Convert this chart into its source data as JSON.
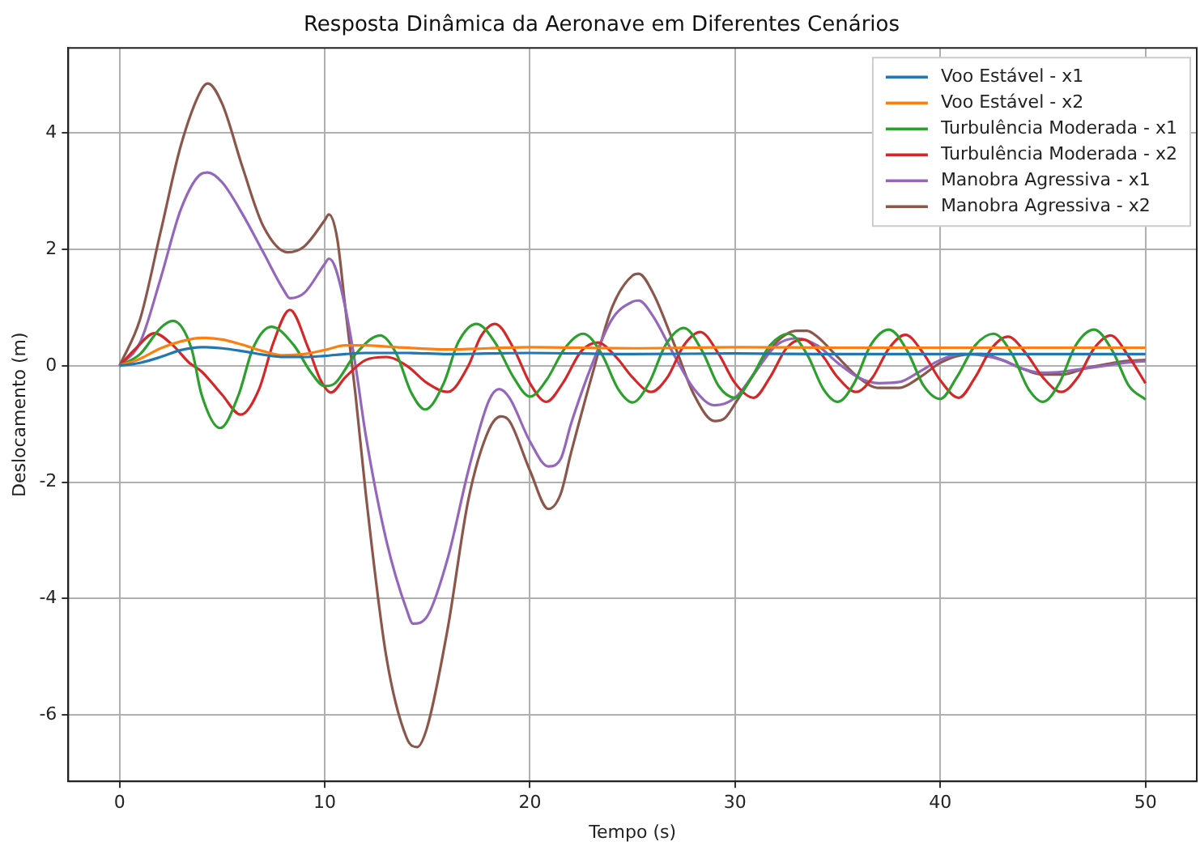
{
  "chart_data": {
    "type": "line",
    "title": "Resposta Dinâmica da Aeronave em Diferentes Cenários",
    "xlabel": "Tempo (s)",
    "ylabel": "Deslocamento (m)",
    "xlim": [
      -2.5,
      52.5
    ],
    "xticks": [
      0,
      10,
      20,
      30,
      40,
      50
    ],
    "ylim": [
      -7.14,
      5.46
    ],
    "yticks": [
      -6,
      -4,
      -2,
      0,
      2,
      4
    ],
    "grid": true,
    "legend": "top right",
    "marker": "none",
    "series": [
      {
        "name": "Voo Estável - x1",
        "color": "#1f77b4",
        "x": [
          0,
          1,
          2,
          3,
          4,
          5,
          6,
          7,
          8,
          9,
          10,
          11,
          12,
          14,
          16,
          18,
          20,
          25,
          30,
          35,
          40,
          45,
          50
        ],
        "values": [
          0,
          0.05,
          0.15,
          0.27,
          0.32,
          0.3,
          0.25,
          0.19,
          0.15,
          0.15,
          0.17,
          0.2,
          0.22,
          0.22,
          0.2,
          0.21,
          0.22,
          0.2,
          0.21,
          0.2,
          0.2,
          0.2,
          0.2
        ]
      },
      {
        "name": "Voo Estável - x2",
        "color": "#ff7f0e",
        "x": [
          0,
          1,
          2,
          3,
          4,
          5,
          6,
          7,
          8,
          9,
          10,
          11,
          12,
          13,
          16,
          18,
          20,
          25,
          30,
          35,
          40,
          45,
          50
        ],
        "values": [
          0,
          0.12,
          0.3,
          0.42,
          0.48,
          0.45,
          0.36,
          0.25,
          0.18,
          0.2,
          0.27,
          0.35,
          0.35,
          0.33,
          0.28,
          0.3,
          0.32,
          0.3,
          0.32,
          0.31,
          0.31,
          0.31,
          0.31
        ]
      },
      {
        "name": "Turbulência Moderada - x1",
        "color": "#2ca02c",
        "x": [
          0,
          1,
          2,
          2.6,
          3.5,
          4,
          4.9,
          5.8,
          6.5,
          7.4,
          8.5,
          9.3,
          10,
          10.5,
          11.5,
          12.7,
          13.5,
          14.2,
          14.9,
          15.8,
          16.5,
          17.4,
          18.3,
          19.2,
          20,
          20.8,
          21.7,
          22.6,
          23.5,
          24.3,
          25,
          25.8,
          26.6,
          27.5,
          28.4,
          29.2,
          30,
          30.8,
          31.7,
          32.6,
          33.5,
          34.3,
          35,
          35.8,
          36.6,
          37.5,
          38.4,
          39.2,
          40,
          40.8,
          41.7,
          42.6,
          43.5,
          44.3,
          45,
          45.8,
          46.6,
          47.5,
          48.4,
          49.2,
          50
        ],
        "values": [
          0,
          0.2,
          0.65,
          0.77,
          0.3,
          -0.5,
          -1.07,
          -0.5,
          0.3,
          0.67,
          0.35,
          -0.1,
          -0.35,
          -0.3,
          0.2,
          0.52,
          0.2,
          -0.45,
          -0.75,
          -0.3,
          0.4,
          0.72,
          0.4,
          -0.2,
          -0.53,
          -0.25,
          0.3,
          0.55,
          0.2,
          -0.4,
          -0.63,
          -0.3,
          0.35,
          0.65,
          0.25,
          -0.35,
          -0.55,
          -0.2,
          0.35,
          0.55,
          0.2,
          -0.4,
          -0.62,
          -0.3,
          0.35,
          0.62,
          0.25,
          -0.35,
          -0.57,
          -0.2,
          0.35,
          0.55,
          0.2,
          -0.4,
          -0.62,
          -0.3,
          0.35,
          0.62,
          0.25,
          -0.35,
          -0.58
        ]
      },
      {
        "name": "Turbulência Moderada - x2",
        "color": "#d62728",
        "x": [
          0,
          0.8,
          1.7,
          2.6,
          3.4,
          4,
          5,
          5.9,
          6.8,
          7.5,
          8.3,
          9.2,
          9.8,
          10.3,
          11,
          12,
          13,
          14,
          15,
          16,
          17,
          17.6,
          18.3,
          19.2,
          20,
          20.8,
          21.6,
          22.5,
          23.3,
          24.2,
          25,
          25.9,
          26.7,
          27.5,
          28.3,
          29.2,
          30,
          30.9,
          31.7,
          32.5,
          33.3,
          34.2,
          35,
          35.9,
          36.7,
          37.5,
          38.3,
          39.2,
          40,
          40.9,
          41.7,
          42.5,
          43.3,
          44.2,
          45,
          45.9,
          46.7,
          47.5,
          48.3,
          49.2,
          50
        ],
        "values": [
          0,
          0.3,
          0.56,
          0.35,
          0.05,
          -0.1,
          -0.5,
          -0.84,
          -0.4,
          0.4,
          0.96,
          0.3,
          -0.25,
          -0.46,
          -0.2,
          0.1,
          0.15,
          0,
          -0.3,
          -0.45,
          0,
          0.5,
          0.72,
          0.3,
          -0.3,
          -0.62,
          -0.3,
          0.25,
          0.4,
          0.15,
          -0.2,
          -0.45,
          -0.2,
          0.35,
          0.58,
          0.2,
          -0.3,
          -0.55,
          -0.2,
          0.3,
          0.45,
          0.2,
          -0.2,
          -0.45,
          -0.2,
          0.3,
          0.53,
          0.2,
          -0.25,
          -0.55,
          -0.2,
          0.3,
          0.5,
          0.2,
          -0.2,
          -0.45,
          -0.2,
          0.3,
          0.52,
          0.15,
          -0.3
        ]
      },
      {
        "name": "Manobra Agressiva - x1",
        "color": "#9467bd",
        "x": [
          0,
          1,
          2,
          3,
          4,
          4.3,
          5,
          6,
          7,
          8,
          8.3,
          9,
          10,
          10.2,
          10.5,
          11,
          11.5,
          12,
          13,
          14,
          14.3,
          15,
          16,
          17,
          18,
          18.5,
          19,
          20,
          20.9,
          21.5,
          22,
          23,
          24,
          25,
          25.3,
          26,
          27,
          28,
          29,
          30,
          31,
          32,
          33,
          34,
          35,
          36,
          37,
          38,
          39,
          40,
          41,
          42,
          43,
          44,
          45,
          46,
          47,
          48,
          49,
          50
        ],
        "values": [
          0,
          0.4,
          1.5,
          2.7,
          3.3,
          3.32,
          3.15,
          2.6,
          1.95,
          1.3,
          1.16,
          1.25,
          1.75,
          1.84,
          1.7,
          1,
          0,
          -1.2,
          -3,
          -4.2,
          -4.43,
          -4.3,
          -3.3,
          -1.8,
          -0.6,
          -0.4,
          -0.55,
          -1.3,
          -1.73,
          -1.6,
          -1,
          0,
          0.8,
          1.1,
          1.12,
          0.85,
          0.2,
          -0.4,
          -0.68,
          -0.55,
          -0.1,
          0.35,
          0.47,
          0.35,
          0.05,
          -0.2,
          -0.3,
          -0.28,
          -0.1,
          0.1,
          0.2,
          0.18,
          0.1,
          -0.05,
          -0.12,
          -0.1,
          -0.05,
          0,
          0.05,
          0.08
        ]
      },
      {
        "name": "Manobra Agressiva - x2",
        "color": "#8c564b",
        "x": [
          0,
          1,
          2,
          3,
          4,
          4.3,
          5,
          6,
          7,
          8.2,
          9,
          10,
          10.2,
          10.6,
          11,
          11.5,
          12,
          13,
          14,
          14.5,
          15,
          16,
          17,
          18,
          18.6,
          19,
          20,
          20.9,
          21.5,
          22,
          23,
          24,
          25,
          25.3,
          26,
          27,
          28,
          29,
          29.5,
          30,
          31,
          32,
          33,
          33.5,
          34,
          35,
          36,
          37,
          38,
          39,
          40,
          41,
          42,
          43,
          44,
          45,
          46,
          47,
          48,
          49,
          50
        ],
        "values": [
          0,
          0.8,
          2.3,
          3.8,
          4.75,
          4.85,
          4.5,
          3.4,
          2.4,
          1.95,
          2.05,
          2.5,
          2.6,
          2.2,
          1,
          -0.5,
          -2.2,
          -5,
          -6.4,
          -6.55,
          -6.2,
          -4.5,
          -2.3,
          -1.1,
          -0.87,
          -0.95,
          -1.8,
          -2.46,
          -2.2,
          -1.5,
          -0.2,
          1,
          1.55,
          1.58,
          1.25,
          0.4,
          -0.5,
          -0.95,
          -0.9,
          -0.65,
          -0.1,
          0.4,
          0.6,
          0.6,
          0.5,
          0.15,
          -0.2,
          -0.38,
          -0.38,
          -0.2,
          0.05,
          0.18,
          0.2,
          0.1,
          -0.05,
          -0.15,
          -0.15,
          -0.05,
          0.02,
          0.08,
          0.1
        ]
      }
    ]
  }
}
